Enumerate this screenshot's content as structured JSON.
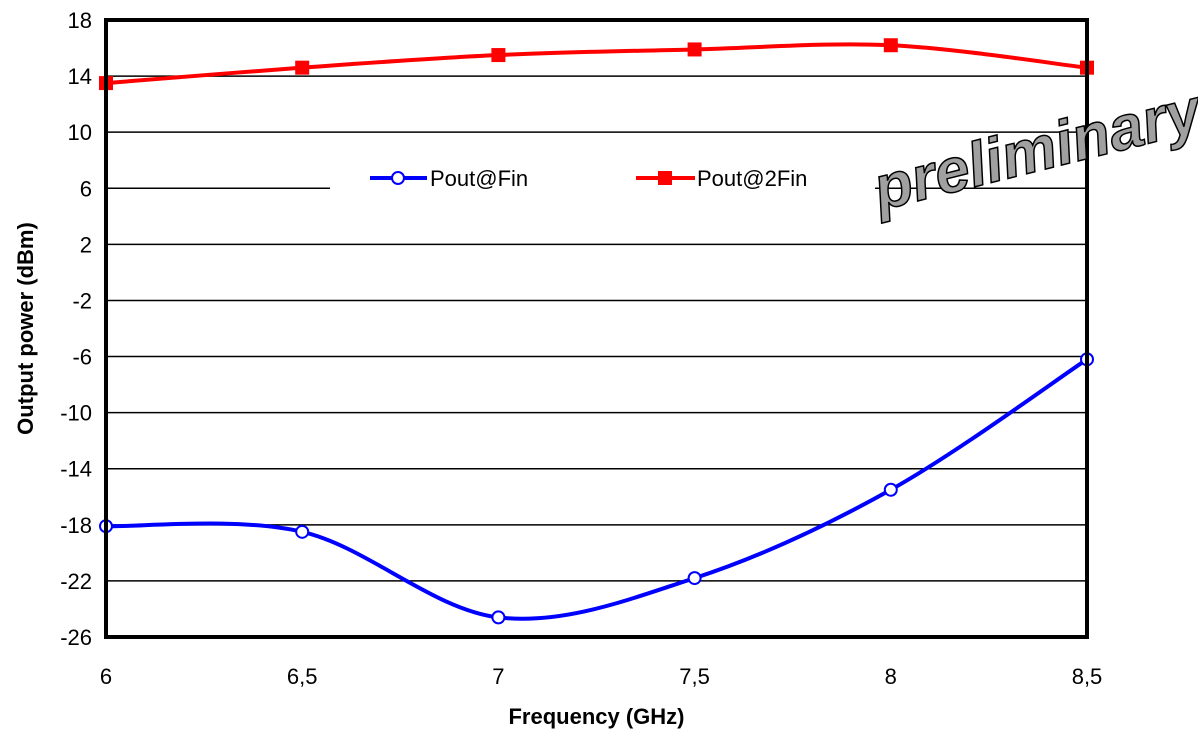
{
  "chart_data": {
    "type": "line",
    "x": [
      6,
      6.5,
      7,
      7.5,
      8,
      8.5
    ],
    "x_tick_labels": [
      "6",
      "6,5",
      "7",
      "7,5",
      "8",
      "8,5"
    ],
    "y_ticks": [
      18,
      14,
      10,
      6,
      2,
      -2,
      -6,
      -10,
      -14,
      -18,
      -22,
      -26
    ],
    "xlim": [
      6,
      8.5
    ],
    "ylim": [
      -26,
      18
    ],
    "xlabel": "Frequency (GHz)",
    "ylabel": "Output power (dBm)",
    "grid": "horizontal",
    "legend_position": "center-top",
    "watermark": "preliminary",
    "series": [
      {
        "name": "Pout@Fin",
        "color": "#0000ff",
        "marker": "open-circle",
        "values": [
          -18.1,
          -18.5,
          -24.6,
          -21.8,
          -15.5,
          -6.2
        ]
      },
      {
        "name": "Pout@2Fin",
        "color": "#ff0000",
        "marker": "filled-square",
        "values": [
          13.5,
          14.6,
          15.5,
          15.9,
          16.2,
          14.6
        ]
      }
    ]
  }
}
